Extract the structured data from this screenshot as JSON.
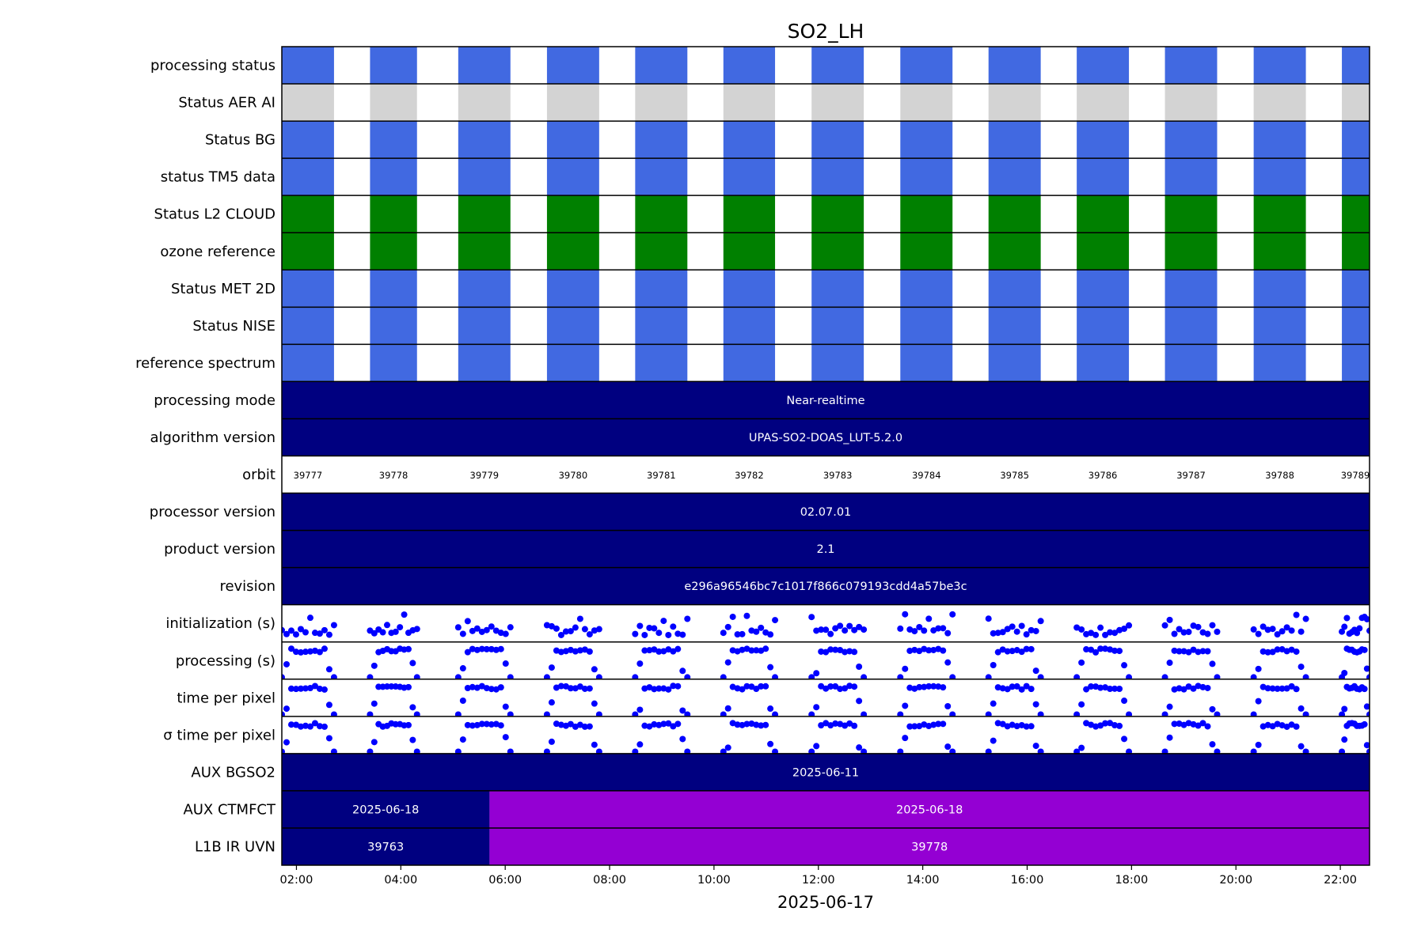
{
  "chart_data": {
    "type": "timeline",
    "title": "SO2_LH",
    "xlabel": "2025-06-17",
    "x_ticks": [
      "02:00",
      "04:00",
      "06:00",
      "08:00",
      "10:00",
      "12:00",
      "14:00",
      "16:00",
      "18:00",
      "20:00",
      "22:00"
    ],
    "x_tick_hours": [
      2,
      4,
      6,
      8,
      10,
      12,
      14,
      16,
      18,
      20,
      22
    ],
    "xlim_hours": [
      1.72,
      22.56
    ],
    "colors": {
      "blue": "#4169e1",
      "grey": "#d3d3d3",
      "green": "#008000",
      "navy": "#000080",
      "purple": "#9400d3",
      "dots": "#0000ff"
    },
    "granules": [
      {
        "orbit": "39777",
        "start": 1.72,
        "end": 2.72
      },
      {
        "orbit": "39778",
        "start": 3.41,
        "end": 4.31
      },
      {
        "orbit": "39779",
        "start": 5.1,
        "end": 6.1
      },
      {
        "orbit": "39780",
        "start": 6.8,
        "end": 7.8
      },
      {
        "orbit": "39781",
        "start": 8.49,
        "end": 9.49
      },
      {
        "orbit": "39782",
        "start": 10.18,
        "end": 11.17
      },
      {
        "orbit": "39783",
        "start": 11.87,
        "end": 12.87
      },
      {
        "orbit": "39784",
        "start": 13.57,
        "end": 14.57
      },
      {
        "orbit": "39785",
        "start": 15.26,
        "end": 16.26
      },
      {
        "orbit": "39786",
        "start": 16.95,
        "end": 17.95
      },
      {
        "orbit": "39787",
        "start": 18.64,
        "end": 19.64
      },
      {
        "orbit": "39788",
        "start": 20.34,
        "end": 21.34
      },
      {
        "orbit": "39789",
        "start": 22.03,
        "end": 22.56
      }
    ],
    "status_rows": [
      {
        "label": "processing status",
        "color": "blue"
      },
      {
        "label": "Status AER AI",
        "color": "grey"
      },
      {
        "label": "Status BG",
        "color": "blue"
      },
      {
        "label": "status TM5 data",
        "color": "blue"
      },
      {
        "label": "Status L2  CLOUD",
        "color": "green"
      },
      {
        "label": "ozone reference",
        "color": "green"
      },
      {
        "label": "Status MET 2D",
        "color": "blue"
      },
      {
        "label": "Status NISE",
        "color": "blue"
      },
      {
        "label": "reference spectrum",
        "color": "blue"
      }
    ],
    "text_rows": [
      {
        "label": "processing mode",
        "segments": [
          {
            "text": "Near-realtime",
            "start": 1.72,
            "end": 22.56,
            "color": "navy"
          }
        ]
      },
      {
        "label": "algorithm version",
        "segments": [
          {
            "text": "UPAS-SO2-DOAS_LUT-5.2.0",
            "start": 1.72,
            "end": 22.56,
            "color": "navy"
          }
        ]
      }
    ],
    "orbit_row": {
      "label": "orbit"
    },
    "text_rows_2": [
      {
        "label": "processor version",
        "segments": [
          {
            "text": "02.07.01",
            "start": 1.72,
            "end": 22.56,
            "color": "navy"
          }
        ]
      },
      {
        "label": "product version",
        "segments": [
          {
            "text": "2.1",
            "start": 1.72,
            "end": 22.56,
            "color": "navy"
          }
        ]
      },
      {
        "label": "revision",
        "segments": [
          {
            "text": "e296a96546bc7c1017f866c079193cdd4a57be3c",
            "start": 1.72,
            "end": 22.56,
            "color": "navy"
          }
        ]
      }
    ],
    "scatter_rows": [
      {
        "label": "initialization (s)",
        "kind": "init"
      },
      {
        "label": "processing (s)",
        "kind": "proc"
      },
      {
        "label": "time per pixel",
        "kind": "proc"
      },
      {
        "label": "σ time per pixel",
        "kind": "proc"
      }
    ],
    "text_rows_3": [
      {
        "label": "AUX BGSO2",
        "segments": [
          {
            "text": "2025-06-11",
            "start": 1.72,
            "end": 22.56,
            "color": "navy"
          }
        ]
      },
      {
        "label": "AUX CTMFCT",
        "segments": [
          {
            "text": "2025-06-18",
            "start": 1.72,
            "end": 5.7,
            "color": "navy"
          },
          {
            "text": "2025-06-18",
            "start": 5.7,
            "end": 22.56,
            "color": "purple"
          }
        ]
      },
      {
        "label": "L1B IR UVN",
        "segments": [
          {
            "text": "39763",
            "start": 1.72,
            "end": 5.7,
            "color": "navy"
          },
          {
            "text": "39778",
            "start": 5.7,
            "end": 22.56,
            "color": "purple"
          }
        ]
      }
    ]
  }
}
